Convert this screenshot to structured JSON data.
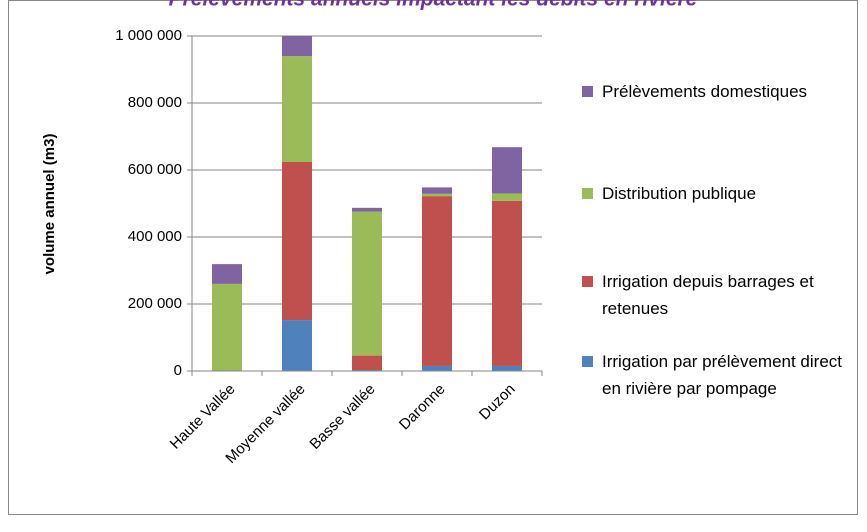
{
  "chart_data": {
    "type": "stacked_bar",
    "title": "Prélèvements annuels impactant les débits en rivière",
    "y_label": "volume annuel  (m3)",
    "categories": [
      "Haute Vallée",
      "Moyenne vallée",
      "Basse vallée",
      "Daronne",
      "Duzon"
    ],
    "series": [
      {
        "name": "Irrigation par prélèvement direct en rivière par pompage",
        "color": "#4f81bd",
        "values": [
          0,
          152000,
          3000,
          15000,
          15000
        ]
      },
      {
        "name": "Irrigation depuis barrages et retenues",
        "color": "#c0504d",
        "values": [
          0,
          472000,
          43000,
          507000,
          493000
        ]
      },
      {
        "name": "Distribution publique",
        "color": "#9bbb59",
        "values": [
          260000,
          316000,
          430000,
          7000,
          22000
        ]
      },
      {
        "name": "Prélèvements domestiques",
        "color": "#8064a2",
        "values": [
          59000,
          60000,
          11000,
          19000,
          138000
        ]
      }
    ],
    "ylim": [
      0,
      1000000
    ],
    "yticks": [
      0,
      {
        "value": 200000,
        "label": "200 000"
      },
      {
        "value": 400000,
        "label": "400 000"
      },
      {
        "value": 600000,
        "label": "600 000"
      },
      {
        "value": 800000,
        "label": "800 000"
      },
      {
        "value": 1000000,
        "label": "1 000 000"
      }
    ],
    "grid": true
  }
}
